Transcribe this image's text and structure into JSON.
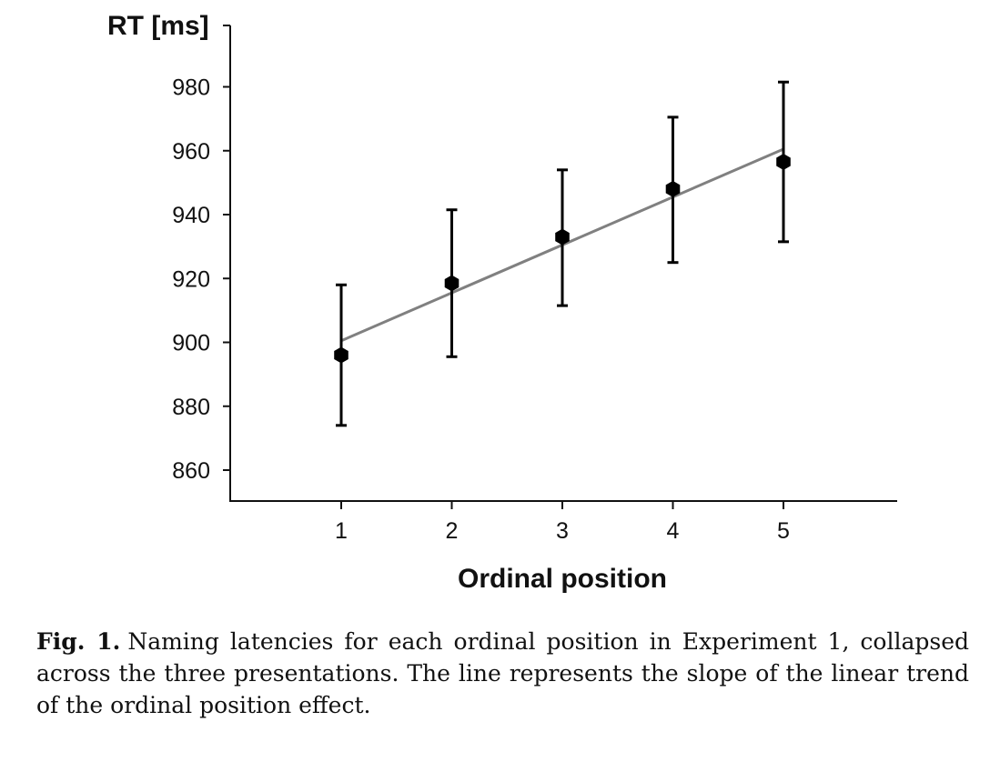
{
  "chart_data": {
    "type": "scatter",
    "ylabel": "RT [ms]",
    "xlabel": "Ordinal position",
    "x_ticks": [
      "1",
      "2",
      "3",
      "4",
      "5"
    ],
    "y_ticks": [
      860,
      880,
      900,
      920,
      940,
      960,
      980
    ],
    "ylim": [
      850,
      990
    ],
    "xlim": [
      0,
      6
    ],
    "grid": false,
    "series": [
      {
        "x": [
          1,
          2,
          3,
          4,
          5
        ],
        "y": [
          896,
          918.5,
          933,
          948,
          956.5
        ],
        "error_upper": [
          918,
          941.5,
          954,
          970.5,
          981.5
        ],
        "error_lower": [
          874,
          895.5,
          911.5,
          925,
          931.5
        ],
        "marker": "hexagon",
        "color": "#000000"
      }
    ],
    "trend_line": {
      "x": [
        1,
        5
      ],
      "y": [
        900.5,
        960.5
      ],
      "color": "#808080"
    }
  },
  "caption": {
    "label": "Fig. 1.",
    "text": "Naming latencies for each ordinal position in Experiment 1, collapsed across the three presentations. The line represents the slope of the linear trend of the ordinal position effect."
  }
}
